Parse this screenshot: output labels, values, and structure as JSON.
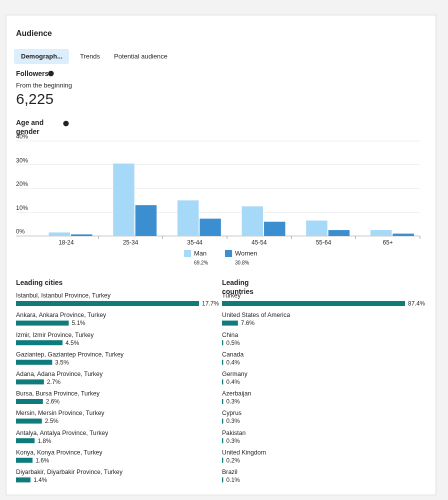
{
  "header": {
    "title": "Audience"
  },
  "tabs": [
    "Demograph...",
    "Trends",
    "Potential audience"
  ],
  "followers": {
    "title": "Followers",
    "subtitle": "From the beginning",
    "count": "6,225"
  },
  "age_gender": {
    "type": "bar",
    "title": "Age and gender",
    "categories": [
      "18-24",
      "25-34",
      "35-44",
      "45-54",
      "55-64",
      "65+"
    ],
    "series": [
      {
        "name": "Man",
        "share": "69.2%",
        "color": "#a6d9f7",
        "values": [
          1.5,
          30.5,
          15,
          12.5,
          6.5,
          2.5
        ]
      },
      {
        "name": "Women",
        "share": "30.8%",
        "color": "#3b8fd0",
        "values": [
          0.7,
          13,
          7.3,
          6,
          2.5,
          1
        ]
      }
    ],
    "ylim": [
      0,
      40
    ],
    "yticks": [
      {
        "value": 0,
        "label": "0%"
      },
      {
        "value": 10,
        "label": "10%"
      },
      {
        "value": 20,
        "label": "20%"
      },
      {
        "value": 30,
        "label": "30%"
      },
      {
        "value": 40,
        "label": "40%"
      }
    ],
    "grid": true
  },
  "leading_cities": {
    "title": "Leading cities",
    "color": "#0f7b7c",
    "names": [
      "Istanbul, Istanbul Province, Turkey",
      "Ankara, Ankara Province, Turkey",
      "Izmir, Izmir Province, Turkey",
      "Gaziantep, Gaziantep Province, Turkey",
      "Adana, Adana Province, Turkey",
      "Bursa, Bursa Province, Turkey",
      "Mersin, Mersin Province, Turkey",
      "Antalya, Antalya Province, Turkey",
      "Konya, Konya Province, Turkey",
      "Diyarbakir, Diyarbakir Province, Turkey"
    ],
    "values": [
      17.7,
      5.1,
      4.5,
      3.5,
      2.7,
      2.6,
      2.5,
      1.8,
      1.6,
      1.4
    ],
    "value_labels": [
      "17.7%",
      "5.1%",
      "4.5%",
      "3.5%",
      "2.7%",
      "2.6%",
      "2.5%",
      "1.8%",
      "1.6%",
      "1.4%"
    ]
  },
  "leading_countries": {
    "title": "Leading countries",
    "color": "#0f7b7c",
    "names": [
      "Turkey",
      "United States of America",
      "China",
      "Canada",
      "Germany",
      "Azerbaijan",
      "Cyprus",
      "Pakistan",
      "United Kingdom",
      "Brazil"
    ],
    "values": [
      87.4,
      7.6,
      0.5,
      0.4,
      0.4,
      0.3,
      0.3,
      0.3,
      0.2,
      0.1
    ],
    "value_labels": [
      "87.4%",
      "7.6%",
      "0.5%",
      "0.4%",
      "0.4%",
      "0.3%",
      "0.3%",
      "0.3%",
      "0.2%",
      "0.1%"
    ]
  }
}
